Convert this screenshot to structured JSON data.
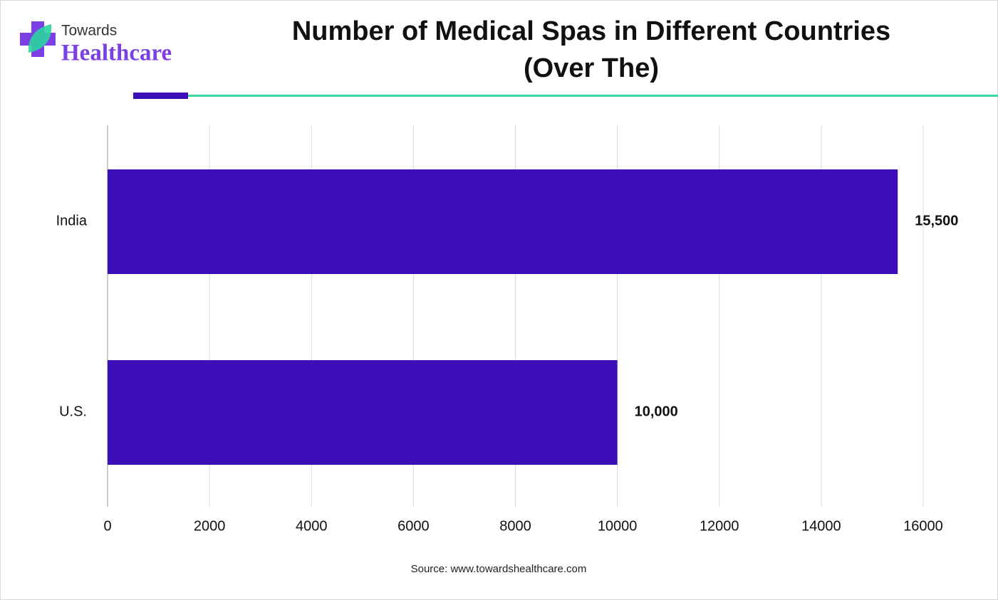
{
  "logo": {
    "line1": "Towards",
    "line2": "Healthcare"
  },
  "chart_data": {
    "type": "bar",
    "orientation": "horizontal",
    "title": "Number of Medical Spas in Different Countries (Over The)",
    "categories": [
      "India",
      "U.S."
    ],
    "values": [
      15500,
      10000
    ],
    "value_labels": [
      "15,500",
      "10,000"
    ],
    "color": "#3d0fb9",
    "xlim": [
      0,
      16000
    ],
    "xticks": [
      0,
      2000,
      4000,
      6000,
      8000,
      10000,
      12000,
      14000,
      16000
    ],
    "grid": true,
    "source": "Source: www.towardshealthcare.com"
  }
}
